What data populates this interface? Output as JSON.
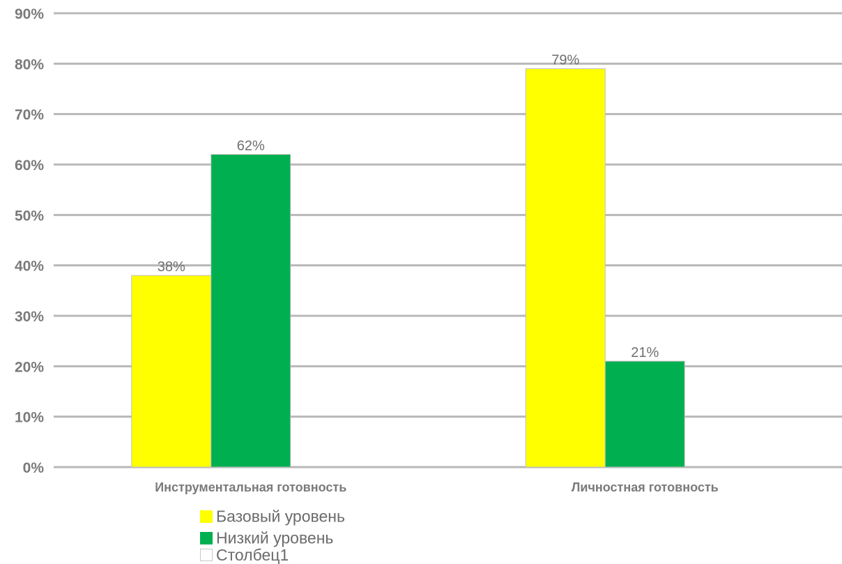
{
  "chart_data": {
    "type": "bar",
    "categories": [
      "Инструментальная готовность",
      "Личностная готовность"
    ],
    "series": [
      {
        "name": "Базовый уровень",
        "values": [
          38,
          79
        ],
        "color": "#ffff00",
        "labels": [
          "38%",
          "79%"
        ]
      },
      {
        "name": "Низкий уровень",
        "values": [
          62,
          21
        ],
        "color": "#00b050",
        "labels": [
          "62%",
          "21%"
        ]
      },
      {
        "name": "Столбец1",
        "values": [
          0,
          0
        ],
        "color": "#ffffff",
        "labels": [
          "",
          ""
        ]
      }
    ],
    "yticks": [
      "0%",
      "10%",
      "20%",
      "30%",
      "40%",
      "50%",
      "60%",
      "70%",
      "80%",
      "90%"
    ],
    "ylim": [
      0,
      90
    ],
    "grid": true,
    "legend_position": "bottom-left",
    "title": "",
    "xlabel": "",
    "ylabel": ""
  },
  "legend": {
    "item1": {
      "label": "Базовый уровень",
      "color": "#ffff00"
    },
    "item2": {
      "label": "Низкий уровень",
      "color": "#00b050"
    },
    "item3": {
      "label": "Столбец1",
      "color": "#ffffff"
    }
  }
}
